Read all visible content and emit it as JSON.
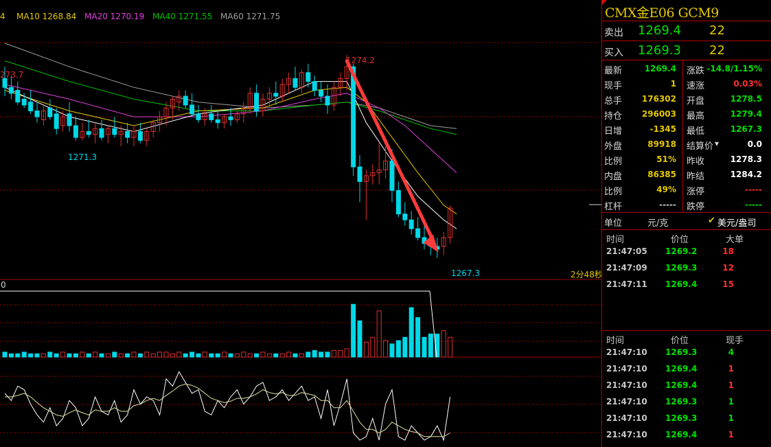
{
  "ma_legend": {
    "ma5_partial": "4",
    "ma10": "MA10 1268.84",
    "ma20": "MA20 1270.19",
    "ma40": "MA40 1271.55",
    "ma60": "MA60 1271.75"
  },
  "colors": {
    "up": "#e03030",
    "down": "#00d8e8",
    "ma5": "#ffffff",
    "ma10": "#e5c800",
    "ma20": "#e040e0",
    "ma40": "#00c000",
    "ma60": "#a0a0a0",
    "grid": "#a00000",
    "price_up": "#00e000",
    "accent": "#e5c800"
  },
  "chart_labels": {
    "left_high": "273.7",
    "peak_high": "1274.2",
    "left_low": "1271.3",
    "bottom_low": "1267.3",
    "countdown": "2分48秒",
    "volume_axis": "0"
  },
  "chart_data": {
    "type": "candlestick",
    "price_range": [
      1266.6,
      1275.6
    ],
    "candles": [
      {
        "o": 1273.4,
        "h": 1273.8,
        "l": 1272.8,
        "c": 1273.1
      },
      {
        "o": 1273.1,
        "h": 1273.5,
        "l": 1272.7,
        "c": 1272.9
      },
      {
        "o": 1273.0,
        "h": 1273.3,
        "l": 1272.5,
        "c": 1272.6
      },
      {
        "o": 1272.7,
        "h": 1272.9,
        "l": 1272.4,
        "c": 1272.5
      },
      {
        "o": 1272.6,
        "h": 1273.0,
        "l": 1272.2,
        "c": 1272.3
      },
      {
        "o": 1272.3,
        "h": 1272.6,
        "l": 1271.9,
        "c": 1272.1
      },
      {
        "o": 1272.0,
        "h": 1272.5,
        "l": 1271.8,
        "c": 1272.3
      },
      {
        "o": 1272.4,
        "h": 1272.7,
        "l": 1272.0,
        "c": 1272.1
      },
      {
        "o": 1272.2,
        "h": 1272.4,
        "l": 1271.5,
        "c": 1271.7
      },
      {
        "o": 1271.8,
        "h": 1272.3,
        "l": 1271.6,
        "c": 1272.1
      },
      {
        "o": 1272.2,
        "h": 1272.6,
        "l": 1271.6,
        "c": 1271.8
      },
      {
        "o": 1271.8,
        "h": 1272.1,
        "l": 1271.3,
        "c": 1271.4
      },
      {
        "o": 1271.4,
        "h": 1271.9,
        "l": 1271.3,
        "c": 1271.6
      },
      {
        "o": 1271.6,
        "h": 1272.0,
        "l": 1271.4,
        "c": 1271.5
      },
      {
        "o": 1271.5,
        "h": 1271.9,
        "l": 1271.2,
        "c": 1271.7
      },
      {
        "o": 1271.7,
        "h": 1272.0,
        "l": 1271.3,
        "c": 1271.4
      },
      {
        "o": 1271.5,
        "h": 1271.8,
        "l": 1271.2,
        "c": 1271.7
      },
      {
        "o": 1271.7,
        "h": 1272.1,
        "l": 1271.4,
        "c": 1271.5
      },
      {
        "o": 1271.5,
        "h": 1271.8,
        "l": 1271.1,
        "c": 1271.6
      },
      {
        "o": 1271.6,
        "h": 1271.9,
        "l": 1271.2,
        "c": 1271.4
      },
      {
        "o": 1271.4,
        "h": 1271.8,
        "l": 1271.1,
        "c": 1271.6
      },
      {
        "o": 1271.6,
        "h": 1271.9,
        "l": 1271.2,
        "c": 1271.3
      },
      {
        "o": 1271.3,
        "h": 1271.7,
        "l": 1271.1,
        "c": 1271.6
      },
      {
        "o": 1271.6,
        "h": 1272.0,
        "l": 1271.4,
        "c": 1271.9
      },
      {
        "o": 1271.9,
        "h": 1272.3,
        "l": 1271.6,
        "c": 1272.1
      },
      {
        "o": 1272.1,
        "h": 1272.6,
        "l": 1271.8,
        "c": 1272.4
      },
      {
        "o": 1272.4,
        "h": 1272.8,
        "l": 1272.0,
        "c": 1272.7
      },
      {
        "o": 1272.6,
        "h": 1273.0,
        "l": 1272.3,
        "c": 1272.8
      },
      {
        "o": 1272.8,
        "h": 1273.0,
        "l": 1272.4,
        "c": 1272.5
      },
      {
        "o": 1272.5,
        "h": 1272.9,
        "l": 1272.1,
        "c": 1272.2
      },
      {
        "o": 1272.2,
        "h": 1272.5,
        "l": 1271.9,
        "c": 1272.0
      },
      {
        "o": 1272.0,
        "h": 1272.4,
        "l": 1271.8,
        "c": 1272.2
      },
      {
        "o": 1272.2,
        "h": 1272.5,
        "l": 1271.9,
        "c": 1272.0
      },
      {
        "o": 1272.0,
        "h": 1272.3,
        "l": 1271.7,
        "c": 1271.9
      },
      {
        "o": 1271.9,
        "h": 1272.2,
        "l": 1271.7,
        "c": 1272.1
      },
      {
        "o": 1272.1,
        "h": 1272.4,
        "l": 1271.8,
        "c": 1272.0
      },
      {
        "o": 1272.0,
        "h": 1272.3,
        "l": 1271.9,
        "c": 1272.2
      },
      {
        "o": 1272.2,
        "h": 1272.6,
        "l": 1271.9,
        "c": 1272.4
      },
      {
        "o": 1272.4,
        "h": 1273.1,
        "l": 1272.2,
        "c": 1272.9
      },
      {
        "o": 1272.9,
        "h": 1273.2,
        "l": 1272.1,
        "c": 1272.3
      },
      {
        "o": 1272.3,
        "h": 1272.9,
        "l": 1272.1,
        "c": 1272.7
      },
      {
        "o": 1272.7,
        "h": 1273.1,
        "l": 1272.4,
        "c": 1272.9
      },
      {
        "o": 1272.9,
        "h": 1273.3,
        "l": 1272.5,
        "c": 1272.8
      },
      {
        "o": 1272.8,
        "h": 1273.4,
        "l": 1272.6,
        "c": 1273.2
      },
      {
        "o": 1273.2,
        "h": 1273.6,
        "l": 1272.9,
        "c": 1273.4
      },
      {
        "o": 1273.4,
        "h": 1273.8,
        "l": 1273.0,
        "c": 1273.1
      },
      {
        "o": 1273.1,
        "h": 1273.7,
        "l": 1272.9,
        "c": 1273.6
      },
      {
        "o": 1273.6,
        "h": 1273.9,
        "l": 1273.1,
        "c": 1273.3
      },
      {
        "o": 1273.3,
        "h": 1273.5,
        "l": 1272.8,
        "c": 1273.0
      },
      {
        "o": 1273.0,
        "h": 1273.3,
        "l": 1272.6,
        "c": 1272.8
      },
      {
        "o": 1272.8,
        "h": 1273.2,
        "l": 1272.2,
        "c": 1272.5
      },
      {
        "o": 1272.5,
        "h": 1273.3,
        "l": 1272.3,
        "c": 1273.1
      },
      {
        "o": 1273.1,
        "h": 1273.6,
        "l": 1272.8,
        "c": 1273.4
      },
      {
        "o": 1273.4,
        "h": 1274.2,
        "l": 1273.0,
        "c": 1273.8
      },
      {
        "o": 1273.8,
        "h": 1273.9,
        "l": 1270.1,
        "c": 1270.4
      },
      {
        "o": 1270.4,
        "h": 1270.8,
        "l": 1269.2,
        "c": 1269.9
      },
      {
        "o": 1269.9,
        "h": 1270.3,
        "l": 1268.6,
        "c": 1270.1
      },
      {
        "o": 1270.1,
        "h": 1270.5,
        "l": 1269.8,
        "c": 1270.2
      },
      {
        "o": 1270.2,
        "h": 1271.2,
        "l": 1269.8,
        "c": 1270.3
      },
      {
        "o": 1270.3,
        "h": 1271.1,
        "l": 1270.0,
        "c": 1270.6
      },
      {
        "o": 1270.6,
        "h": 1271.0,
        "l": 1269.2,
        "c": 1269.6
      },
      {
        "o": 1269.6,
        "h": 1269.9,
        "l": 1268.7,
        "c": 1268.8
      },
      {
        "o": 1268.8,
        "h": 1269.2,
        "l": 1268.4,
        "c": 1268.6
      },
      {
        "o": 1268.6,
        "h": 1268.9,
        "l": 1268.1,
        "c": 1268.3
      },
      {
        "o": 1268.3,
        "h": 1268.7,
        "l": 1267.9,
        "c": 1268.0
      },
      {
        "o": 1268.0,
        "h": 1268.4,
        "l": 1267.6,
        "c": 1267.8
      },
      {
        "o": 1267.8,
        "h": 1268.1,
        "l": 1267.4,
        "c": 1267.7
      },
      {
        "o": 1267.7,
        "h": 1268.0,
        "l": 1267.3,
        "c": 1267.6
      },
      {
        "o": 1267.7,
        "h": 1268.2,
        "l": 1267.4,
        "c": 1268.0
      },
      {
        "o": 1268.0,
        "h": 1269.1,
        "l": 1267.8,
        "c": 1269.0
      }
    ],
    "ma_curves": {
      "ma5": [
        [
          0,
          1273.1
        ],
        [
          10,
          1272.1
        ],
        [
          20,
          1271.6
        ],
        [
          30,
          1272.2
        ],
        [
          40,
          1272.5
        ],
        [
          48,
          1273.3
        ],
        [
          53,
          1273.3
        ],
        [
          56,
          1271.9
        ],
        [
          60,
          1270.6
        ],
        [
          64,
          1269.4
        ],
        [
          68,
          1268.6
        ],
        [
          70,
          1268.3
        ]
      ],
      "ma10": [
        [
          0,
          1273.0
        ],
        [
          10,
          1272.3
        ],
        [
          20,
          1271.8
        ],
        [
          30,
          1272.3
        ],
        [
          40,
          1272.4
        ],
        [
          48,
          1273.0
        ],
        [
          53,
          1273.1
        ],
        [
          56,
          1272.6
        ],
        [
          60,
          1271.4
        ],
        [
          64,
          1270.2
        ],
        [
          68,
          1269.1
        ],
        [
          70,
          1268.8
        ]
      ],
      "ma20": [
        [
          0,
          1273.2
        ],
        [
          10,
          1272.7
        ],
        [
          20,
          1272.1
        ],
        [
          30,
          1272.1
        ],
        [
          40,
          1272.3
        ],
        [
          48,
          1272.7
        ],
        [
          53,
          1272.9
        ],
        [
          58,
          1272.4
        ],
        [
          62,
          1271.8
        ],
        [
          66,
          1271.0
        ],
        [
          70,
          1270.2
        ]
      ],
      "ma40": [
        [
          0,
          1274.0
        ],
        [
          10,
          1273.3
        ],
        [
          20,
          1272.7
        ],
        [
          30,
          1272.3
        ],
        [
          40,
          1272.3
        ],
        [
          48,
          1272.5
        ],
        [
          53,
          1272.6
        ],
        [
          58,
          1272.3
        ],
        [
          62,
          1272.0
        ],
        [
          66,
          1271.7
        ],
        [
          70,
          1271.5
        ]
      ],
      "ma60": [
        [
          0,
          1274.6
        ],
        [
          10,
          1273.8
        ],
        [
          20,
          1273.1
        ],
        [
          30,
          1272.6
        ],
        [
          40,
          1272.4
        ],
        [
          48,
          1272.5
        ],
        [
          53,
          1272.6
        ],
        [
          58,
          1272.4
        ],
        [
          62,
          1272.1
        ],
        [
          66,
          1271.8
        ],
        [
          70,
          1271.7
        ]
      ]
    },
    "volume": [
      3,
      2,
      2,
      3,
      2,
      2,
      2,
      3,
      2,
      3,
      2,
      2,
      3,
      2,
      3,
      2,
      2,
      3,
      2,
      2,
      3,
      2,
      3,
      2,
      3,
      3,
      2,
      3,
      2,
      3,
      2,
      3,
      2,
      2,
      3,
      2,
      2,
      3,
      2,
      2,
      3,
      2,
      2,
      2,
      3,
      2,
      2,
      3,
      4,
      3,
      3,
      4,
      4,
      5,
      32,
      22,
      9,
      12,
      28,
      10,
      8,
      10,
      12,
      30,
      24,
      12,
      14,
      14,
      16,
      12
    ],
    "volume_range": [
      0,
      40
    ],
    "oscillator": [
      0.65,
      0.55,
      0.75,
      0.7,
      0.5,
      0.35,
      0.25,
      0.45,
      0.2,
      0.3,
      0.55,
      0.45,
      0.2,
      0.3,
      0.6,
      0.4,
      0.35,
      0.55,
      0.25,
      0.35,
      0.7,
      0.5,
      0.6,
      0.55,
      0.35,
      0.85,
      0.75,
      0.95,
      0.8,
      0.65,
      0.7,
      0.4,
      0.35,
      0.55,
      0.45,
      0.6,
      0.7,
      0.5,
      0.6,
      0.75,
      0.8,
      0.55,
      0.6,
      0.7,
      0.55,
      0.65,
      0.75,
      0.55,
      0.6,
      0.3,
      0.7,
      0.2,
      0.5,
      0.85,
      0.1,
      0.0,
      0.05,
      0.3,
      0.0,
      0.5,
      0.7,
      0.05,
      0.0,
      0.2,
      0.1,
      0.0,
      0.05,
      0.2,
      0.0,
      0.6
    ],
    "oscillator_signal": [
      0.6,
      0.6,
      0.62,
      0.65,
      0.6,
      0.52,
      0.45,
      0.4,
      0.35,
      0.33,
      0.38,
      0.42,
      0.38,
      0.35,
      0.42,
      0.4,
      0.4,
      0.45,
      0.4,
      0.4,
      0.48,
      0.5,
      0.55,
      0.58,
      0.55,
      0.62,
      0.68,
      0.75,
      0.78,
      0.76,
      0.72,
      0.65,
      0.58,
      0.55,
      0.52,
      0.54,
      0.58,
      0.58,
      0.6,
      0.64,
      0.7,
      0.66,
      0.64,
      0.66,
      0.62,
      0.62,
      0.66,
      0.64,
      0.62,
      0.55,
      0.55,
      0.45,
      0.45,
      0.55,
      0.4,
      0.25,
      0.15,
      0.15,
      0.1,
      0.15,
      0.25,
      0.2,
      0.15,
      0.12,
      0.1,
      0.05,
      0.05,
      0.05,
      0.05,
      0.1
    ]
  },
  "panel": {
    "title": "CMX金E06  GCM9",
    "sell": {
      "label": "卖出",
      "price": "1269.4",
      "volume": "22"
    },
    "buy": {
      "label": "买入",
      "price": "1269.3",
      "volume": "22"
    },
    "quotes_left": [
      {
        "label": "最新",
        "value": "1269.4",
        "color": "#00e000"
      },
      {
        "label": "现手",
        "value": "1",
        "color": "#e5c800"
      },
      {
        "label": "总手",
        "value": "176302",
        "color": "#e5c800"
      },
      {
        "label": "持仓",
        "value": "296003",
        "color": "#e5c800"
      },
      {
        "label": "日增",
        "value": "-1345",
        "color": "#e5c800"
      },
      {
        "label": "外盘",
        "value": "89918",
        "color": "#e5c800"
      },
      {
        "label": "比例",
        "value": "51%",
        "color": "#e5c800"
      },
      {
        "label": "内盘",
        "value": "86385",
        "color": "#e5c800"
      },
      {
        "label": "比例",
        "value": "49%",
        "color": "#e5c800"
      },
      {
        "label": "杠杆",
        "value": "-----",
        "color": "#c8c8c8"
      }
    ],
    "quotes_right": [
      {
        "label": "涨跌",
        "value": "-14.8/1.15%",
        "color": "#00e000"
      },
      {
        "label": "速涨",
        "value": "0.03%",
        "color": "#ff3030"
      },
      {
        "label": "开盘",
        "value": "1278.5",
        "color": "#00e000"
      },
      {
        "label": "最高",
        "value": "1279.4",
        "color": "#00e000"
      },
      {
        "label": "最低",
        "value": "1267.3",
        "color": "#00e000"
      },
      {
        "label": "结算价",
        "value": "0.0",
        "color": "#ffffff"
      },
      {
        "label": "昨收",
        "value": "1278.3",
        "color": "#ffffff"
      },
      {
        "label": "昨结",
        "value": "1284.2",
        "color": "#ffffff"
      },
      {
        "label": "涨停",
        "value": "-----",
        "color": "#ff3030"
      },
      {
        "label": "跌停",
        "value": "-----",
        "color": "#00e000"
      }
    ],
    "unit": {
      "label": "单位",
      "value": "元/克",
      "option": "美元/盎司"
    },
    "big_orders": {
      "headers": [
        "时间",
        "价位",
        "大单"
      ],
      "rows": [
        {
          "time": "21:47:05",
          "price": "1269.2",
          "vol": "18"
        },
        {
          "time": "21:47:09",
          "price": "1269.3",
          "vol": "12"
        },
        {
          "time": "21:47:11",
          "price": "1269.4",
          "vol": "15"
        }
      ]
    },
    "ticks": {
      "headers": [
        "时间",
        "价位",
        "现手"
      ],
      "rows": [
        {
          "time": "21:47:10",
          "price": "1269.3",
          "vol": "4",
          "color": "#00e000"
        },
        {
          "time": "21:47:10",
          "price": "1269.4",
          "vol": "1",
          "color": "#ff3030"
        },
        {
          "time": "21:47:10",
          "price": "1269.4",
          "vol": "1",
          "color": "#ff3030"
        },
        {
          "time": "21:47:10",
          "price": "1269.3",
          "vol": "1",
          "color": "#00e000"
        },
        {
          "time": "21:47:10",
          "price": "1269.3",
          "vol": "1",
          "color": "#00e000"
        },
        {
          "time": "21:47:10",
          "price": "1269.4",
          "vol": "1",
          "color": "#ff3030"
        }
      ]
    }
  }
}
